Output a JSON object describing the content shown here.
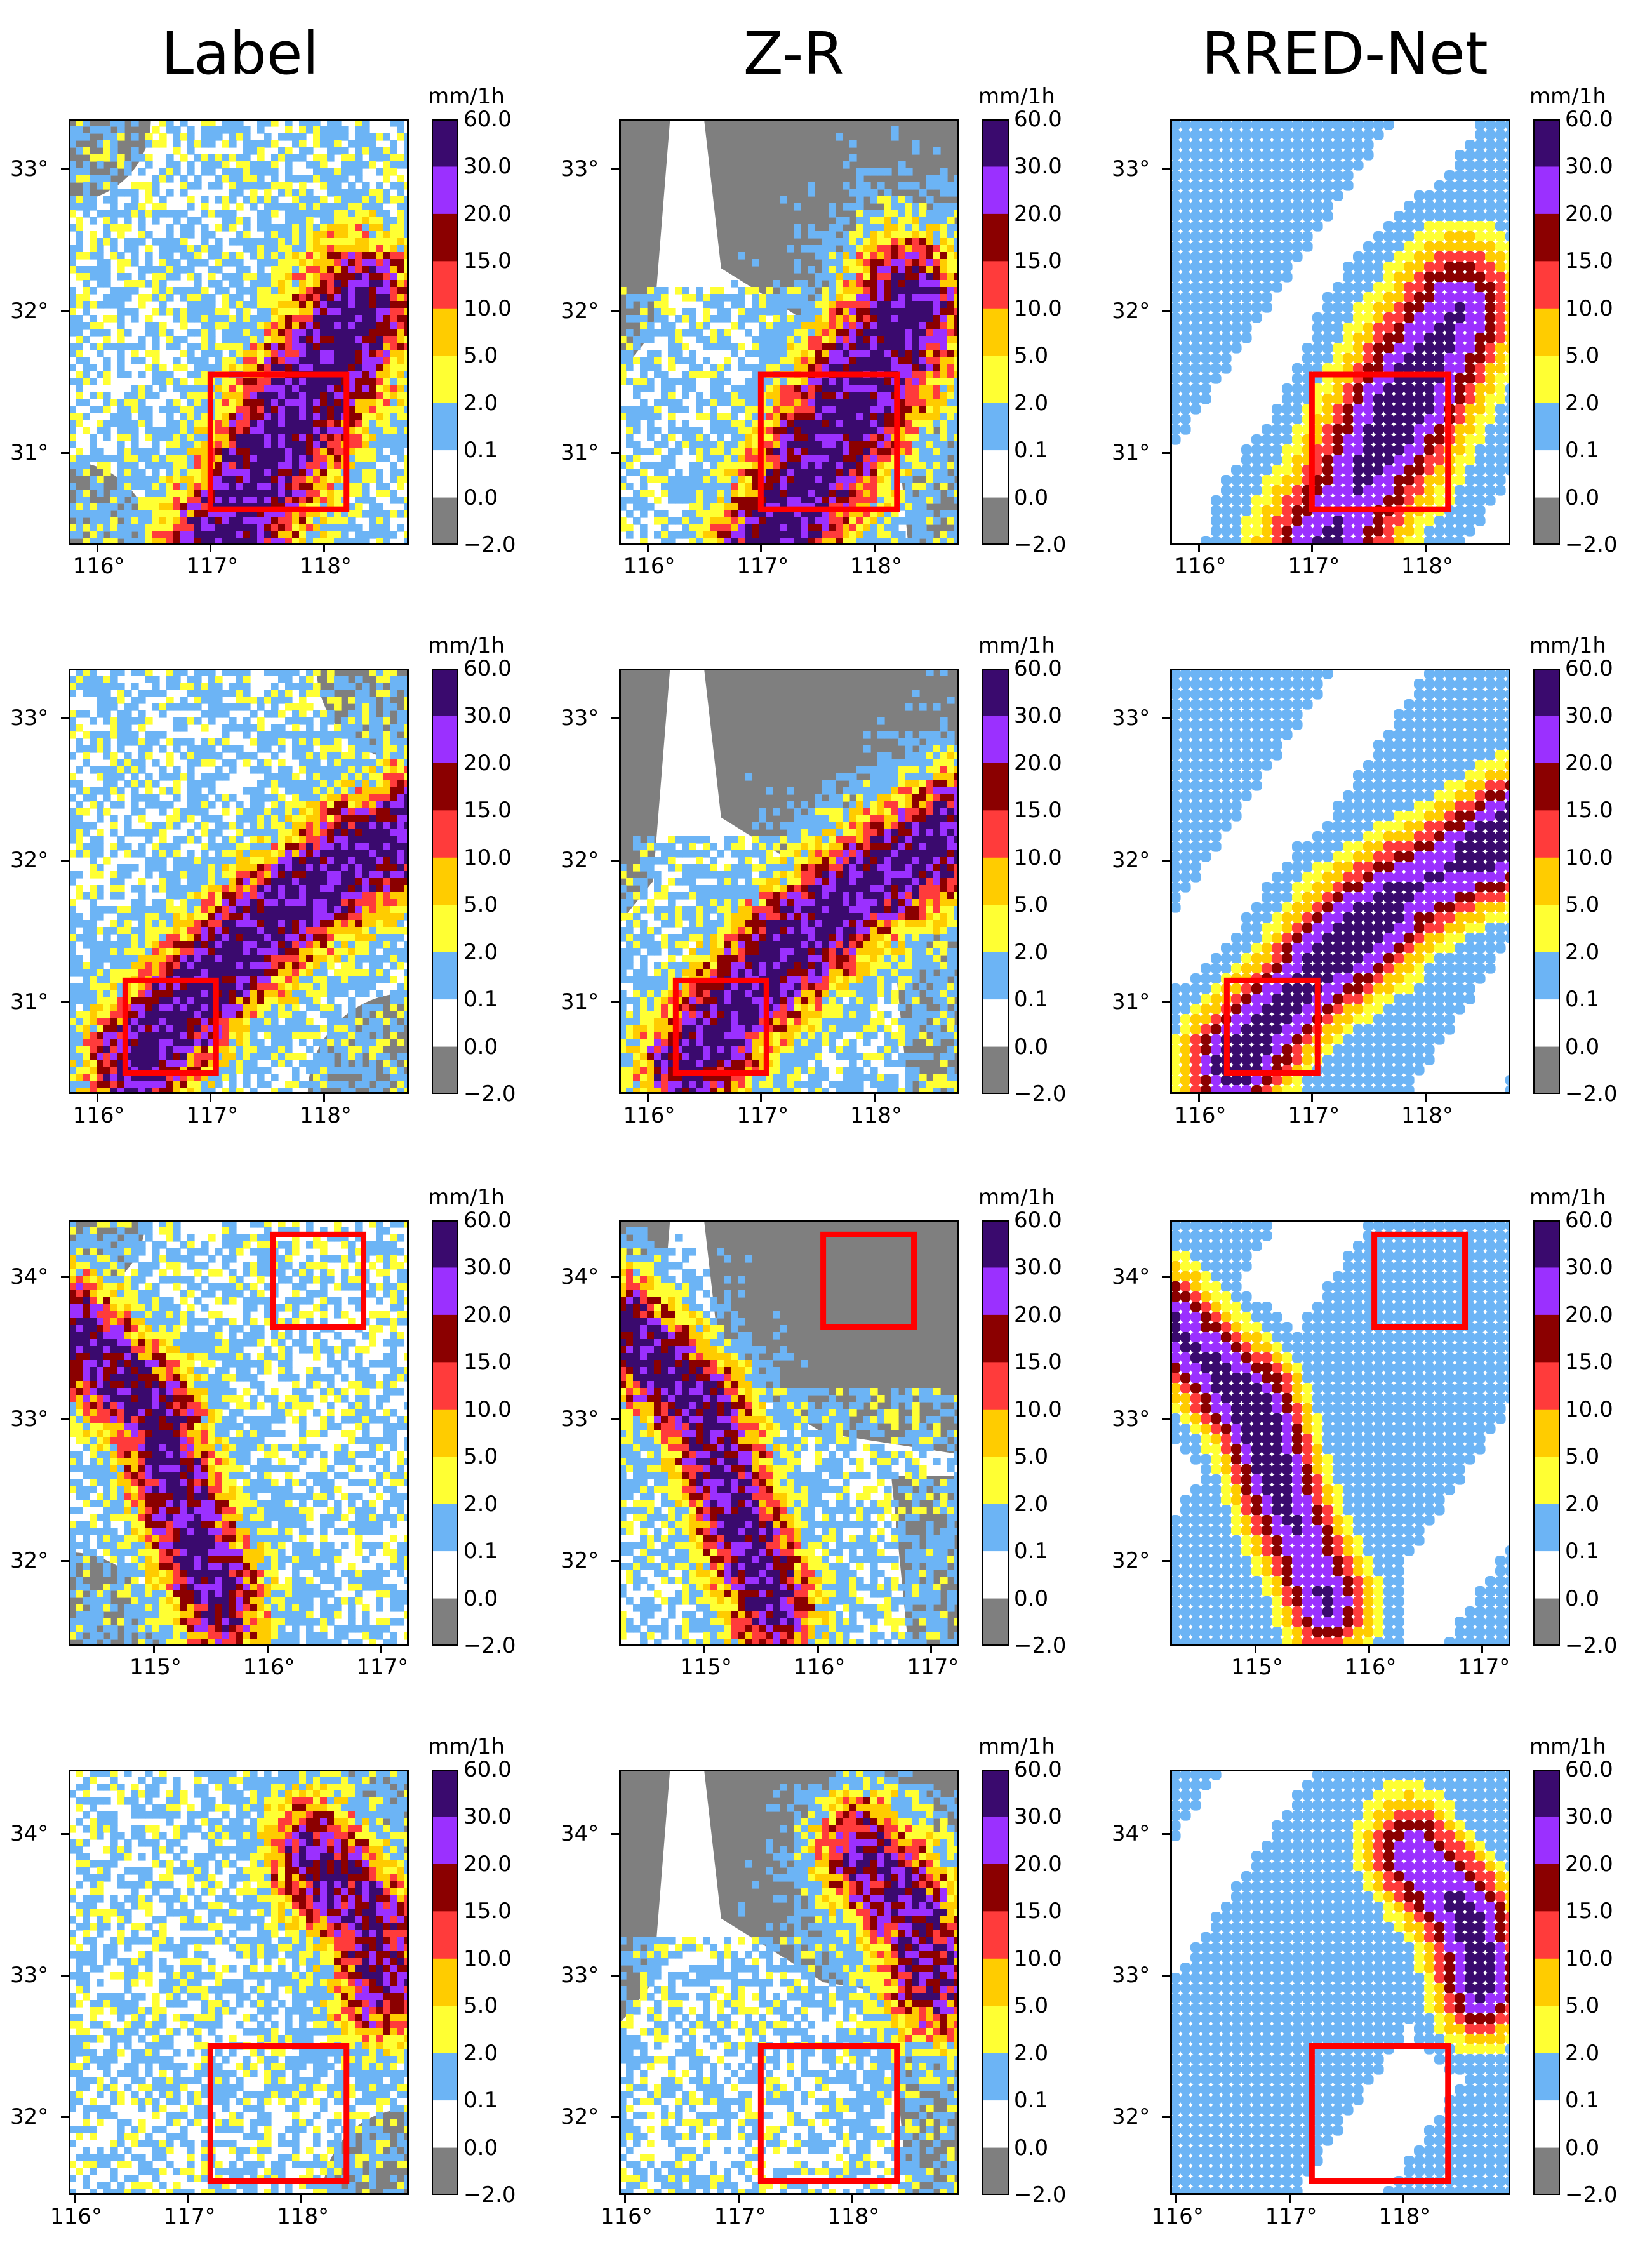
{
  "column_titles": [
    "Label",
    "Z-R",
    "RRED-Net"
  ],
  "colorbar": {
    "unit": "mm/1h",
    "labels": [
      "60.0",
      "30.0",
      "20.0",
      "15.0",
      "10.0",
      "5.0",
      "2.0",
      "0.1",
      "0.0",
      "−2.0"
    ],
    "colors": [
      "#3a0a6e",
      "#9b30ff",
      "#8b0000",
      "#ff3b3b",
      "#ffcc00",
      "#ffff33",
      "#6cb4f5",
      "#ffffff",
      "#7f7f7f"
    ]
  },
  "colors": {
    "no_data": "#7f7f7f",
    "light": "#6cb4f5",
    "moderate": "#ffff33",
    "heavy": "#ffcc00",
    "very_heavy": "#ff3b3b",
    "intense": "#8b0000",
    "torrential": "#9b30ff",
    "extreme": "#3a0a6e",
    "highlight_box": "#ff0000"
  },
  "chart_data": [
    {
      "row": 1,
      "type": "heatmap",
      "xticks": [
        "116°",
        "117°",
        "118°"
      ],
      "yticks": [
        "33°",
        "32°",
        "31°"
      ],
      "xlim": [
        115.75,
        118.75
      ],
      "ylim": [
        30.35,
        33.35
      ],
      "highlight_box": {
        "lon": [
          117.0,
          118.2
        ],
        "lat": [
          30.6,
          31.55
        ]
      }
    },
    {
      "row": 2,
      "type": "heatmap",
      "xticks": [
        "116°",
        "117°",
        "118°"
      ],
      "yticks": [
        "33°",
        "32°",
        "31°"
      ],
      "xlim": [
        115.75,
        118.75
      ],
      "ylim": [
        30.35,
        33.35
      ],
      "highlight_box": {
        "lon": [
          116.25,
          117.05
        ],
        "lat": [
          30.5,
          31.15
        ]
      }
    },
    {
      "row": 3,
      "type": "heatmap",
      "xticks": [
        "115°",
        "116°",
        "117°"
      ],
      "yticks": [
        "34°",
        "33°",
        "32°"
      ],
      "xlim": [
        114.25,
        117.25
      ],
      "ylim": [
        31.4,
        34.4
      ],
      "highlight_box": {
        "lon": [
          116.05,
          116.85
        ],
        "lat": [
          33.65,
          34.3
        ]
      }
    },
    {
      "row": 4,
      "type": "heatmap",
      "xticks": [
        "116°",
        "117°",
        "118°"
      ],
      "yticks": [
        "34°",
        "33°",
        "32°"
      ],
      "xlim": [
        115.95,
        118.95
      ],
      "ylim": [
        31.45,
        34.45
      ],
      "highlight_box": {
        "lon": [
          117.2,
          118.4
        ],
        "lat": [
          31.55,
          32.5
        ]
      }
    }
  ]
}
